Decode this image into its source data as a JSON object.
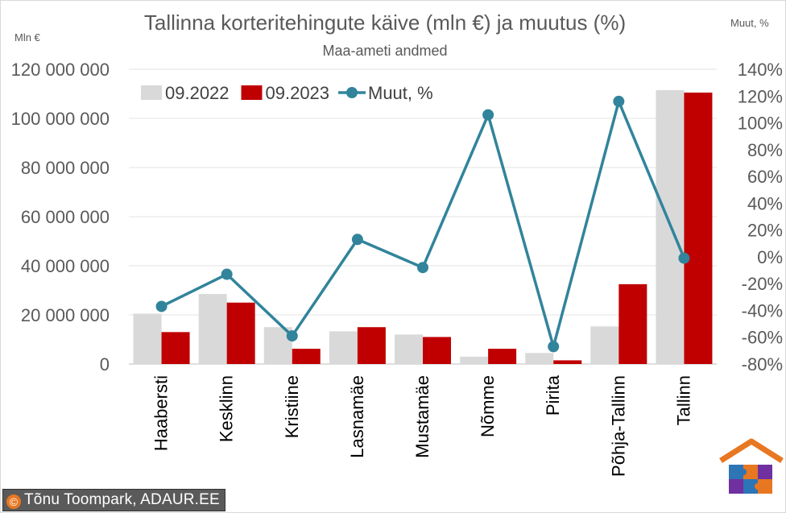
{
  "chart_data": {
    "type": "bar",
    "title": "Tallinna korteritehingute käive (mln €) ja muutus (%)",
    "subtitle": "Maa-ameti andmed",
    "ylabel": "Mln €",
    "y2label": "Muut, %",
    "ylim": [
      0,
      120000000
    ],
    "y2lim": [
      -80,
      140
    ],
    "yticks": [
      "0",
      "20 000 000",
      "40 000 000",
      "60 000 000",
      "80 000 000",
      "100 000 000",
      "120 000 000"
    ],
    "y2ticks": [
      "-80%",
      "-60%",
      "-40%",
      "-20%",
      "0%",
      "20%",
      "40%",
      "60%",
      "80%",
      "100%",
      "120%",
      "140%"
    ],
    "categories": [
      "Haabersti",
      "Kesklinn",
      "Kristiine",
      "Lasnamäe",
      "Mustamäe",
      "Nõmme",
      "Pirita",
      "Põhja-Tallinn",
      "Tallinn"
    ],
    "series": [
      {
        "name": "09.2022",
        "kind": "bar",
        "color": "#d9d9d9",
        "values": [
          20500000,
          28500000,
          15000000,
          13300000,
          12000000,
          3000000,
          4500000,
          15300000,
          111500000
        ]
      },
      {
        "name": "09.2023",
        "kind": "bar",
        "color": "#c00000",
        "values": [
          13000000,
          25000000,
          6200000,
          15000000,
          11000000,
          6200000,
          1500000,
          32500000,
          110500000
        ]
      },
      {
        "name": "Muut, %",
        "kind": "line",
        "axis": "secondary",
        "color": "#31849b",
        "values": [
          -37,
          -13,
          -59,
          13,
          -8,
          106,
          -67,
          116,
          -1
        ]
      }
    ],
    "legend": "top-left",
    "grid": true
  },
  "footer": {
    "credit_symbol": "©",
    "credit": "Tõnu Toompark, ADAUR.EE"
  }
}
